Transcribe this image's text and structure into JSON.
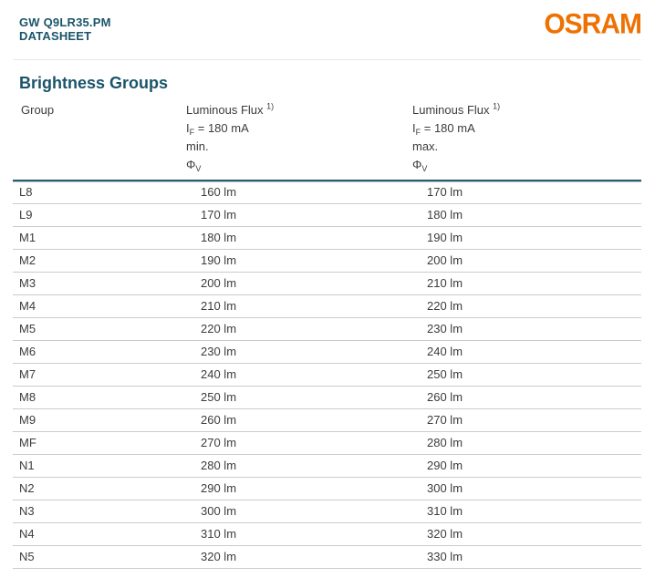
{
  "page": {
    "product": "GW Q9LR35.PM",
    "doc_type": "DATASHEET",
    "brand": "OSRAM",
    "section_title": "Brightness Groups"
  },
  "colors": {
    "petrol_heading": "#1a546a",
    "brand_orange": "#ee7203",
    "table_header_line": "#2b5d6e",
    "row_separator": "#cbcbcb",
    "body_text": "#3c3c3c"
  },
  "table": {
    "header": {
      "group": "Group",
      "min": [
        "Luminous Flux ^{1)}",
        "I_{F} = 180 mA",
        "min.",
        "Φ_{V}"
      ],
      "max": [
        "Luminous Flux ^{1)}",
        "I_{F} = 180 mA",
        "max.",
        "Φ_{V}"
      ]
    },
    "rows": [
      {
        "group": "L8",
        "min": "160 lm",
        "max": "170 lm"
      },
      {
        "group": "L9",
        "min": "170 lm",
        "max": "180 lm"
      },
      {
        "group": "M1",
        "min": "180 lm",
        "max": "190 lm"
      },
      {
        "group": "M2",
        "min": "190 lm",
        "max": "200 lm"
      },
      {
        "group": "M3",
        "min": "200 lm",
        "max": "210 lm"
      },
      {
        "group": "M4",
        "min": "210 lm",
        "max": "220 lm"
      },
      {
        "group": "M5",
        "min": "220 lm",
        "max": "230 lm"
      },
      {
        "group": "M6",
        "min": "230 lm",
        "max": "240 lm"
      },
      {
        "group": "M7",
        "min": "240 lm",
        "max": "250 lm"
      },
      {
        "group": "M8",
        "min": "250 lm",
        "max": "260 lm"
      },
      {
        "group": "M9",
        "min": "260 lm",
        "max": "270 lm"
      },
      {
        "group": "MF",
        "min": "270 lm",
        "max": "280 lm"
      },
      {
        "group": "N1",
        "min": "280 lm",
        "max": "290 lm"
      },
      {
        "group": "N2",
        "min": "290 lm",
        "max": "300 lm"
      },
      {
        "group": "N3",
        "min": "300 lm",
        "max": "310 lm"
      },
      {
        "group": "N4",
        "min": "310 lm",
        "max": "320 lm"
      },
      {
        "group": "N5",
        "min": "320 lm",
        "max": "330 lm"
      }
    ]
  }
}
